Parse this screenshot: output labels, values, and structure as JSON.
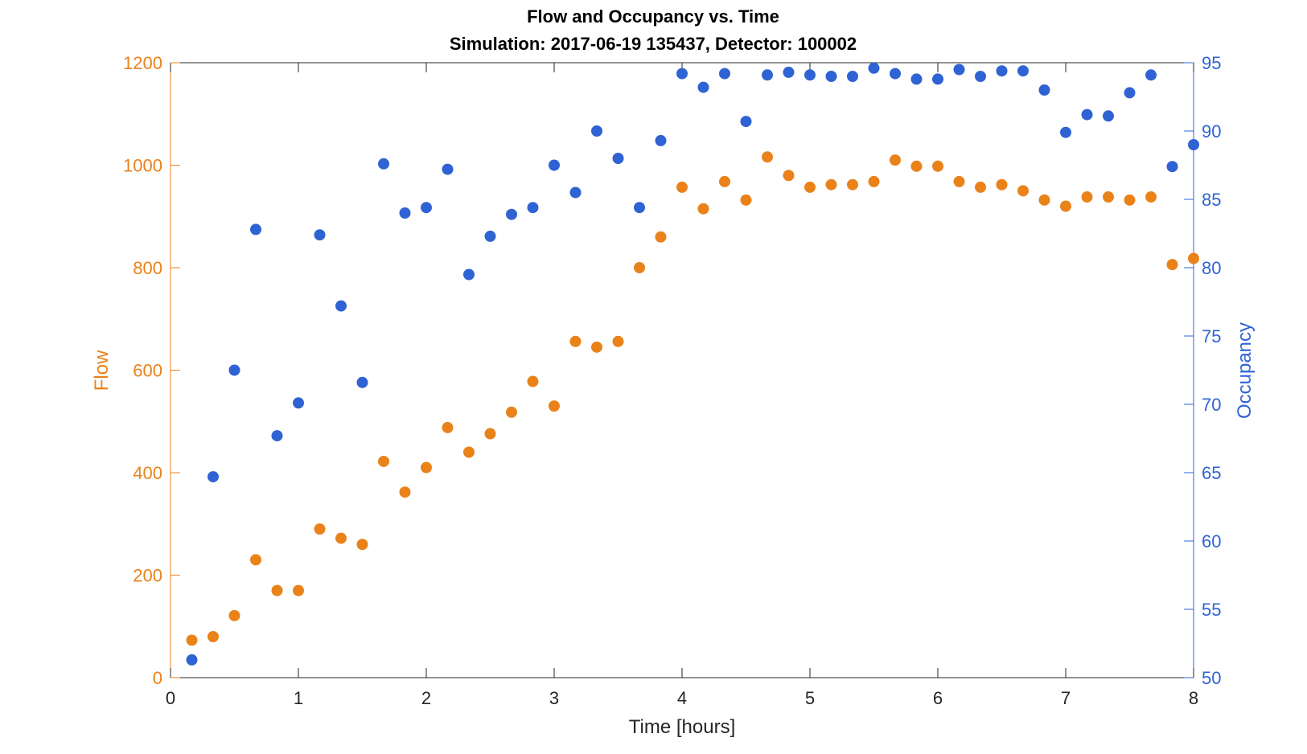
{
  "chart_data": {
    "type": "scatter",
    "title": "Flow and Occupancy vs. Time",
    "subtitle": "Simulation:  2017-06-19 135437,  Detector:  100002",
    "xlabel": "Time [hours]",
    "ylabel_left": "Flow",
    "ylabel_right": "Occupancy",
    "xlim": [
      0,
      8
    ],
    "ylim_left": [
      0,
      1200
    ],
    "ylim_right": [
      50,
      95
    ],
    "xticks": [
      "0",
      "1",
      "2",
      "3",
      "4",
      "5",
      "6",
      "7",
      "8"
    ],
    "yticks_left": [
      "0",
      "200",
      "400",
      "600",
      "800",
      "1000",
      "1200"
    ],
    "yticks_right": [
      "50",
      "55",
      "60",
      "65",
      "70",
      "75",
      "80",
      "85",
      "90",
      "95"
    ],
    "grid": false,
    "colors": {
      "flow": "#EA821A",
      "occupancy": "#2F63D4",
      "axis": "#262626"
    },
    "x": [
      0.1667,
      0.3333,
      0.5,
      0.6667,
      0.8333,
      1.0,
      1.1667,
      1.3333,
      1.5,
      1.6667,
      1.8333,
      2.0,
      2.1667,
      2.3333,
      2.5,
      2.6667,
      2.8333,
      3.0,
      3.1667,
      3.3333,
      3.5,
      3.6667,
      3.8333,
      4.0,
      4.1667,
      4.3333,
      4.5,
      4.6667,
      4.8333,
      5.0,
      5.1667,
      5.3333,
      5.5,
      5.6667,
      5.8333,
      6.0,
      6.1667,
      6.3333,
      6.5,
      6.6667,
      6.8333,
      7.0,
      7.1667,
      7.3333,
      7.5,
      7.6667,
      7.8333,
      8.0
    ],
    "series": [
      {
        "name": "Flow",
        "axis": "left",
        "values": [
          73,
          80,
          121,
          230,
          170,
          170,
          290,
          272,
          260,
          422,
          362,
          410,
          488,
          440,
          476,
          518,
          578,
          530,
          656,
          645,
          656,
          800,
          860,
          957,
          915,
          968,
          932,
          1016,
          980,
          957,
          962,
          962,
          968,
          1010,
          998,
          998,
          968,
          957,
          962,
          950,
          932,
          920,
          938,
          938,
          932,
          938,
          806,
          818
        ]
      },
      {
        "name": "Occupancy",
        "axis": "right",
        "values": [
          51.3,
          64.7,
          72.5,
          82.8,
          67.7,
          70.1,
          82.4,
          77.2,
          71.6,
          87.6,
          84.0,
          84.4,
          87.2,
          79.5,
          82.3,
          83.9,
          84.4,
          87.5,
          85.5,
          90.0,
          88.0,
          84.4,
          89.3,
          94.2,
          93.2,
          94.2,
          90.7,
          94.1,
          94.3,
          94.1,
          94.0,
          94.0,
          94.6,
          94.2,
          93.8,
          93.8,
          94.5,
          94.0,
          94.4,
          94.4,
          93.0,
          89.9,
          91.2,
          91.1,
          92.8,
          94.1,
          87.4,
          89.0
        ]
      }
    ]
  }
}
